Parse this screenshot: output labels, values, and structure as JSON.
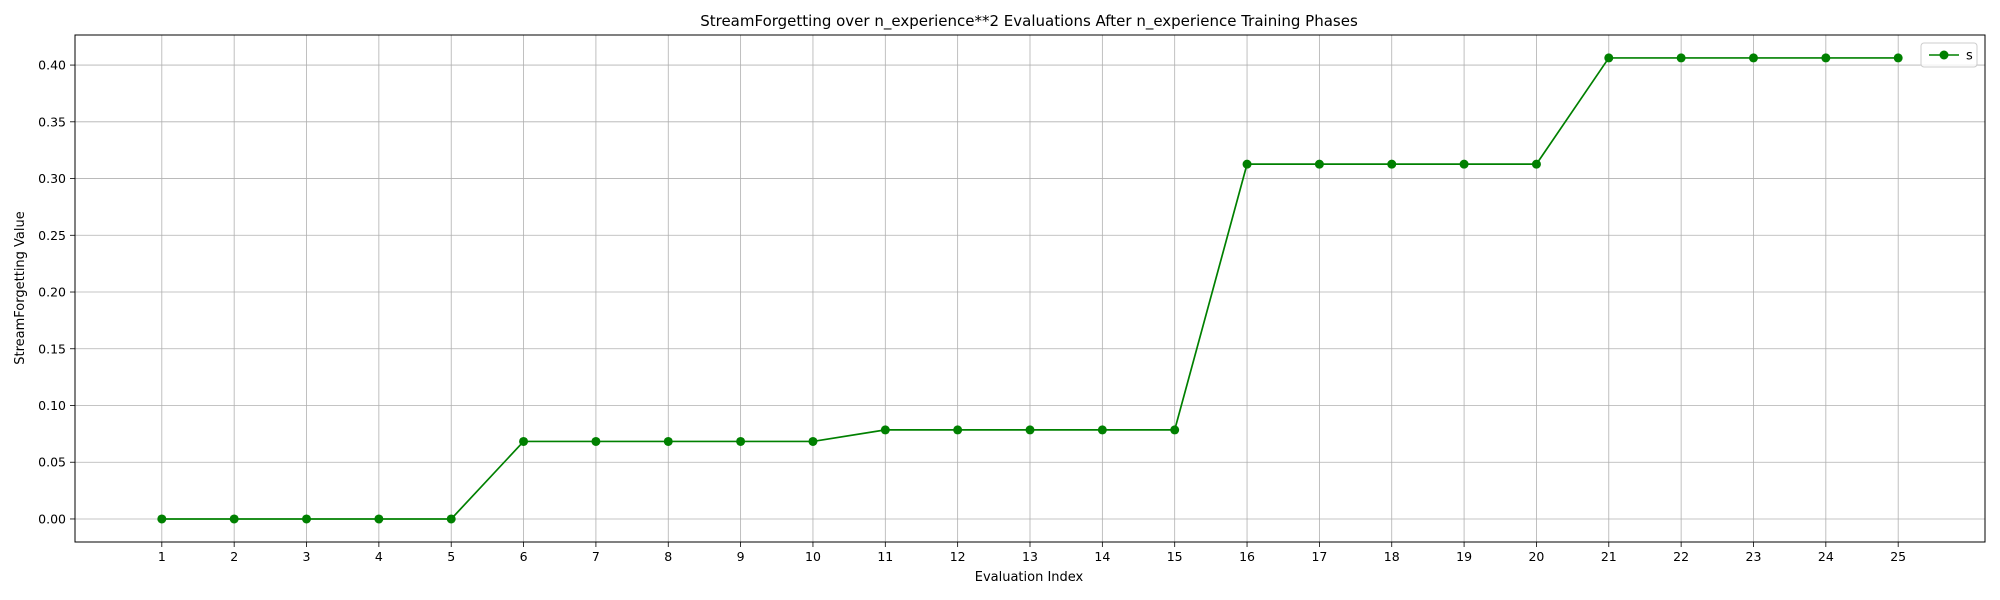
{
  "chart_data": {
    "type": "line",
    "title": "StreamForgetting over n_experience**2 Evaluations After n_experience Training Phases",
    "xlabel": "Evaluation Index",
    "ylabel": "StreamForgetting Value",
    "x": [
      1,
      2,
      3,
      4,
      5,
      6,
      7,
      8,
      9,
      10,
      11,
      12,
      13,
      14,
      15,
      16,
      17,
      18,
      19,
      20,
      21,
      22,
      23,
      24,
      25
    ],
    "xlim": [
      -0.2,
      26.2
    ],
    "ylim": [
      -0.0203,
      0.4265
    ],
    "yticks": [
      0.0,
      0.05,
      0.1,
      0.15,
      0.2,
      0.25,
      0.3,
      0.35,
      0.4
    ],
    "ytick_labels": [
      "0.00",
      "0.05",
      "0.10",
      "0.15",
      "0.20",
      "0.25",
      "0.30",
      "0.35",
      "0.40"
    ],
    "grid": true,
    "legend_position": "top-right",
    "series": [
      {
        "name": "s",
        "color": "#008000",
        "marker": "circle",
        "values": [
          0.0,
          0.0,
          0.0,
          0.0,
          0.0,
          0.0683,
          0.0683,
          0.0683,
          0.0683,
          0.0683,
          0.0785,
          0.0785,
          0.0785,
          0.0785,
          0.0785,
          0.3127,
          0.3127,
          0.3127,
          0.3127,
          0.3127,
          0.4063,
          0.4063,
          0.4063,
          0.4063,
          0.4063
        ]
      }
    ]
  }
}
